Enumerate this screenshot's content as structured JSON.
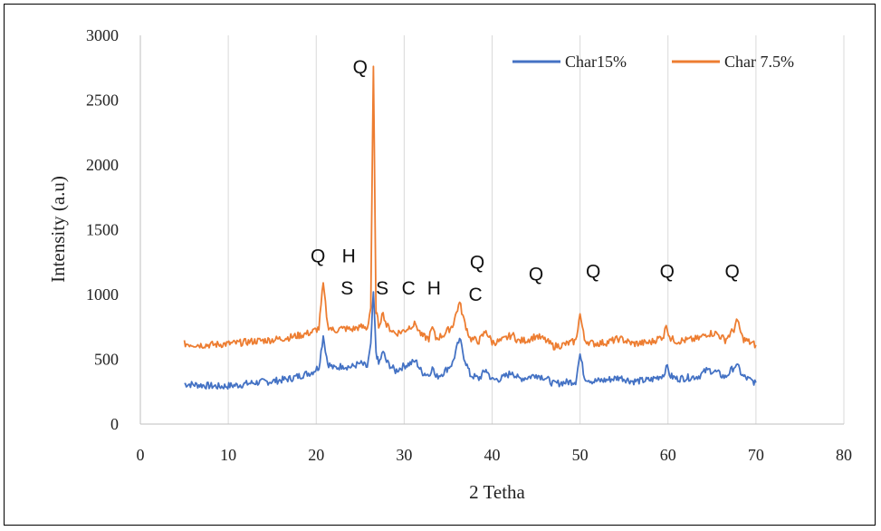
{
  "chart_data": {
    "type": "line",
    "xlabel": "2 Tetha",
    "ylabel": "Intensity (a.u)",
    "xlim": [
      0,
      80
    ],
    "ylim": [
      0,
      3000
    ],
    "xticks": [
      0,
      10,
      20,
      30,
      40,
      50,
      60,
      70,
      80
    ],
    "yticks": [
      0,
      500,
      1000,
      1500,
      2000,
      2500,
      3000
    ],
    "grid": "vertical",
    "legend_position": "top-right",
    "series": [
      {
        "name": "Char15%",
        "color": "#4472C4",
        "x": [
          5,
          7,
          9,
          11,
          13,
          15,
          17,
          18.5,
          19.5,
          20.3,
          20.8,
          21.3,
          22,
          23,
          24,
          25,
          25.8,
          26.2,
          26.5,
          26.8,
          27.1,
          27.6,
          28,
          29,
          30,
          30.8,
          31.3,
          32,
          32.8,
          33.2,
          33.6,
          34.5,
          35.5,
          36.3,
          36.8,
          37.5,
          38.5,
          39.3,
          40,
          41,
          42.3,
          43,
          44,
          45,
          46,
          47,
          48,
          49.5,
          50,
          50.5,
          51.5,
          53,
          54.5,
          56,
          58,
          59.5,
          59.8,
          60.3,
          61,
          62.5,
          63.5,
          64.5,
          65.5,
          66.5,
          67.5,
          67.8,
          68.5,
          69.3,
          70
        ],
        "values": [
          310,
          300,
          290,
          300,
          320,
          330,
          350,
          380,
          400,
          440,
          680,
          470,
          430,
          450,
          440,
          470,
          440,
          600,
          1020,
          560,
          460,
          560,
          480,
          410,
          450,
          470,
          490,
          400,
          380,
          440,
          360,
          400,
          470,
          660,
          520,
          380,
          350,
          420,
          340,
          350,
          400,
          350,
          360,
          380,
          360,
          310,
          320,
          330,
          540,
          360,
          330,
          340,
          360,
          330,
          340,
          380,
          450,
          370,
          350,
          360,
          370,
          420,
          400,
          360,
          440,
          460,
          370,
          340,
          320
        ]
      },
      {
        "name": "Char 7.5%",
        "color": "#ED7D31",
        "x": [
          5,
          7,
          9,
          11,
          13,
          15,
          17,
          18.5,
          19.5,
          20.3,
          20.8,
          21.3,
          22,
          23,
          24,
          25,
          25.8,
          26.2,
          26.5,
          26.8,
          27.1,
          27.6,
          28,
          29,
          30,
          30.8,
          31.3,
          32,
          32.8,
          33.2,
          33.6,
          34.5,
          35.5,
          36.3,
          36.8,
          37.5,
          38.5,
          39.3,
          40,
          41,
          42.3,
          43,
          44,
          45,
          46,
          47,
          48,
          49.5,
          50,
          50.5,
          51.5,
          53,
          54.5,
          56,
          58,
          59.5,
          59.8,
          60.3,
          61,
          62.5,
          63.5,
          64.5,
          65.5,
          66.5,
          67.5,
          67.8,
          68.5,
          69.3,
          70
        ],
        "values": [
          620,
          610,
          615,
          625,
          640,
          650,
          670,
          690,
          710,
          740,
          1090,
          760,
          720,
          740,
          730,
          750,
          740,
          900,
          2760,
          880,
          760,
          860,
          760,
          700,
          720,
          760,
          770,
          680,
          660,
          750,
          660,
          690,
          760,
          940,
          800,
          660,
          640,
          720,
          630,
          640,
          690,
          640,
          650,
          680,
          650,
          600,
          610,
          640,
          850,
          650,
          620,
          630,
          660,
          620,
          630,
          680,
          760,
          660,
          640,
          650,
          660,
          700,
          700,
          650,
          730,
          810,
          660,
          630,
          610
        ]
      }
    ],
    "annotations": [
      {
        "text": "Q",
        "x": 25,
        "y": 2705
      },
      {
        "text": "Q",
        "x": 20.2,
        "y": 1250
      },
      {
        "text": "H",
        "x": 23.7,
        "y": 1250
      },
      {
        "text": "S",
        "x": 23.5,
        "y": 1000
      },
      {
        "text": "S",
        "x": 27.5,
        "y": 1000
      },
      {
        "text": "C",
        "x": 30.5,
        "y": 1000
      },
      {
        "text": "H",
        "x": 33.4,
        "y": 1000
      },
      {
        "text": "Q",
        "x": 38.3,
        "y": 1200
      },
      {
        "text": "C",
        "x": 38.1,
        "y": 950
      },
      {
        "text": "Q",
        "x": 45,
        "y": 1110
      },
      {
        "text": "Q",
        "x": 51.5,
        "y": 1130
      },
      {
        "text": "Q",
        "x": 59.9,
        "y": 1130
      },
      {
        "text": "Q",
        "x": 67.3,
        "y": 1130
      }
    ]
  }
}
